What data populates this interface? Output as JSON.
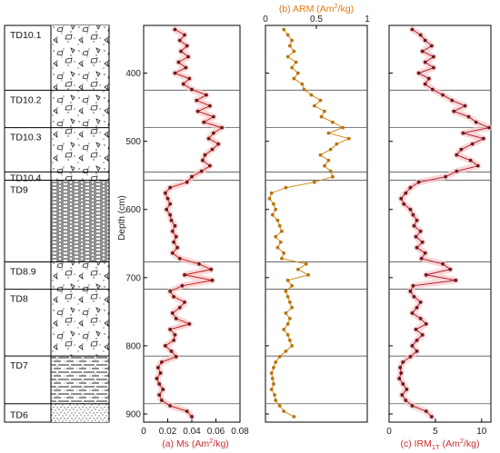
{
  "figure": {
    "units": [
      "TD10.1",
      "TD10.2",
      "TD10.3",
      "TD10.4",
      "TD9",
      "TD8.9",
      "TD8",
      "TD7",
      "TD6"
    ],
    "unit_depths": [
      {
        "name": "TD10.1",
        "top": 330,
        "bottom": 425
      },
      {
        "name": "TD10.2",
        "top": 425,
        "bottom": 480
      },
      {
        "name": "TD10.3",
        "top": 480,
        "bottom": 545
      },
      {
        "name": "TD10.4",
        "top": 545,
        "bottom": 557
      },
      {
        "name": "TD9",
        "top": 557,
        "bottom": 677
      },
      {
        "name": "TD8.9",
        "top": 677,
        "bottom": 717
      },
      {
        "name": "TD8",
        "top": 717,
        "bottom": 815
      },
      {
        "name": "TD7",
        "top": 815,
        "bottom": 885
      },
      {
        "name": "TD6",
        "top": 885,
        "bottom": 912
      }
    ],
    "boundaries": [
      425,
      480,
      545,
      557,
      677,
      717,
      815,
      885
    ],
    "colors": {
      "ms": "#c81e1e",
      "arm": "#d08a1a",
      "irm": "#b0203a",
      "marker": "#6e1a1a",
      "halo": "#f6c8c8",
      "arm_label": "#e07a10",
      "red_label": "#c83030"
    }
  },
  "chart_data": [
    {
      "type": "line",
      "title": "(a) Ms (Am²/kg)",
      "label_main": "(a) Ms (Am",
      "label_tail": "/kg)",
      "xlim": [
        0,
        0.08
      ],
      "xticks": [
        "0",
        "0.02",
        "0.04",
        "0.06",
        "0.08"
      ],
      "xtick_values": [
        0,
        0.02,
        0.04,
        0.06,
        0.08
      ],
      "ylabel": "Depth (cm)",
      "ylim": [
        330,
        912
      ],
      "yticks": [
        "400",
        "500",
        "600",
        "700",
        "800",
        "900"
      ],
      "ytick_values": [
        400,
        500,
        600,
        700,
        800,
        900
      ],
      "depth": [
        336,
        344,
        352,
        360,
        368,
        376,
        384,
        392,
        400,
        408,
        416,
        424,
        432,
        440,
        448,
        456,
        464,
        472,
        480,
        488,
        496,
        504,
        512,
        520,
        528,
        536,
        544,
        552,
        560,
        568,
        576,
        584,
        592,
        600,
        608,
        616,
        624,
        632,
        640,
        648,
        656,
        664,
        672,
        680,
        688,
        696,
        704,
        712,
        720,
        728,
        736,
        744,
        752,
        760,
        768,
        776,
        784,
        792,
        800,
        808,
        816,
        824,
        832,
        840,
        848,
        856,
        864,
        872,
        880,
        888,
        896,
        904
      ],
      "values": [
        0.026,
        0.034,
        0.03,
        0.036,
        0.031,
        0.037,
        0.029,
        0.035,
        0.026,
        0.038,
        0.033,
        0.04,
        0.052,
        0.044,
        0.055,
        0.045,
        0.058,
        0.05,
        0.065,
        0.058,
        0.054,
        0.062,
        0.057,
        0.051,
        0.049,
        0.055,
        0.048,
        0.04,
        0.036,
        0.022,
        0.018,
        0.02,
        0.022,
        0.019,
        0.022,
        0.023,
        0.026,
        0.024,
        0.027,
        0.025,
        0.028,
        0.024,
        0.03,
        0.046,
        0.056,
        0.034,
        0.057,
        0.032,
        0.022,
        0.025,
        0.034,
        0.03,
        0.024,
        0.027,
        0.038,
        0.022,
        0.026,
        0.025,
        0.018,
        0.023,
        0.027,
        0.015,
        0.012,
        0.014,
        0.011,
        0.013,
        0.016,
        0.013,
        0.015,
        0.022,
        0.036,
        0.04
      ]
    },
    {
      "type": "line",
      "title": "(b) ARM (Am²/kg)",
      "label_main": "(b) ARM (Am",
      "label_tail": "/kg)",
      "xlim": [
        0,
        1
      ],
      "xticks": [
        "0",
        "0.5",
        "1"
      ],
      "xtick_values": [
        0,
        0.5,
        1
      ],
      "ylim": [
        330,
        912
      ],
      "depth": [
        336,
        344,
        352,
        360,
        368,
        376,
        384,
        392,
        400,
        408,
        416,
        424,
        432,
        440,
        448,
        456,
        464,
        472,
        480,
        488,
        496,
        504,
        512,
        520,
        528,
        536,
        544,
        552,
        560,
        568,
        576,
        584,
        592,
        600,
        608,
        616,
        624,
        632,
        640,
        648,
        656,
        664,
        672,
        680,
        688,
        696,
        704,
        712,
        720,
        728,
        736,
        744,
        752,
        760,
        768,
        776,
        784,
        792,
        800,
        808,
        816,
        824,
        832,
        840,
        848,
        856,
        864,
        872,
        880,
        888,
        896,
        904
      ],
      "values": [
        0.18,
        0.22,
        0.26,
        0.24,
        0.28,
        0.22,
        0.3,
        0.26,
        0.32,
        0.28,
        0.36,
        0.38,
        0.45,
        0.54,
        0.48,
        0.58,
        0.55,
        0.66,
        0.76,
        0.62,
        0.82,
        0.7,
        0.64,
        0.54,
        0.62,
        0.58,
        0.64,
        0.66,
        0.48,
        0.2,
        0.06,
        0.04,
        0.08,
        0.1,
        0.07,
        0.12,
        0.14,
        0.16,
        0.1,
        0.15,
        0.12,
        0.18,
        0.16,
        0.4,
        0.32,
        0.42,
        0.22,
        0.26,
        0.2,
        0.22,
        0.24,
        0.26,
        0.2,
        0.24,
        0.22,
        0.18,
        0.22,
        0.24,
        0.26,
        0.2,
        0.14,
        0.1,
        0.08,
        0.06,
        0.07,
        0.08,
        0.06,
        0.09,
        0.1,
        0.14,
        0.18,
        0.28
      ]
    },
    {
      "type": "line",
      "title": "(c) IRM1T (Am²/kg)",
      "label_main": "(c) IRM",
      "label_sub": "1T",
      "label_tail": " (Am",
      "label_tail2": "/kg)",
      "xlim": [
        0,
        11
      ],
      "xticks": [
        "0",
        "5",
        "10"
      ],
      "xtick_values": [
        0,
        5,
        10
      ],
      "ylim": [
        330,
        912
      ],
      "depth": [
        336,
        344,
        352,
        360,
        368,
        376,
        384,
        392,
        400,
        408,
        416,
        424,
        432,
        440,
        448,
        456,
        464,
        472,
        480,
        488,
        496,
        504,
        512,
        520,
        528,
        536,
        544,
        552,
        560,
        568,
        576,
        584,
        592,
        600,
        608,
        616,
        624,
        632,
        640,
        648,
        656,
        664,
        672,
        680,
        688,
        696,
        704,
        712,
        720,
        728,
        736,
        744,
        752,
        760,
        768,
        776,
        784,
        792,
        800,
        808,
        816,
        824,
        832,
        840,
        848,
        856,
        864,
        872,
        880,
        888,
        896,
        904
      ],
      "values": [
        2.5,
        3.4,
        3.9,
        4.6,
        3.6,
        4.8,
        3.9,
        4.8,
        3.2,
        4.3,
        3.9,
        4.7,
        5.8,
        6.8,
        8.2,
        7.0,
        8.6,
        9.4,
        10.8,
        8.0,
        10.2,
        9.0,
        7.8,
        7.3,
        8.8,
        9.6,
        7.3,
        6.1,
        3.2,
        2.3,
        1.8,
        1.3,
        1.6,
        2.3,
        2.6,
        3.0,
        2.7,
        3.4,
        2.9,
        3.6,
        3.0,
        3.9,
        3.5,
        5.8,
        6.6,
        4.0,
        7.2,
        2.6,
        2.3,
        2.7,
        3.4,
        3.0,
        2.5,
        3.4,
        4.0,
        2.9,
        3.6,
        3.0,
        2.5,
        3.0,
        2.3,
        1.5,
        1.2,
        1.3,
        1.1,
        1.5,
        1.9,
        1.4,
        1.8,
        2.5,
        4.0,
        4.6
      ]
    }
  ]
}
